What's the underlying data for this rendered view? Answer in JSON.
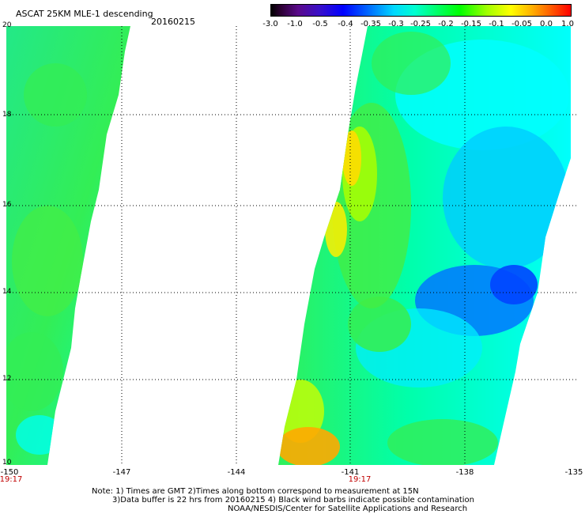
{
  "header": {
    "title": "ASCAT 25KM MLE-1 descending",
    "date": "20160215"
  },
  "colorbar": {
    "labels": [
      "-3.0",
      "-1.0",
      "-0.5",
      "-0.4",
      "-0.35",
      "-0.3",
      "-0.25",
      "-0.2",
      "-0.15",
      "-0.1",
      "-0.05",
      "0.0",
      "1.0"
    ]
  },
  "map": {
    "lat_labels": [
      "20",
      "18",
      "16",
      "14",
      "12",
      "10"
    ],
    "lon_labels": [
      "-150",
      "-147",
      "-144",
      "-141",
      "-138",
      "-135"
    ],
    "time_labels": [
      "19:17",
      "19:17"
    ],
    "colors": {
      "green": "#33ee55",
      "aqua": "#00ffaa",
      "cyan": "#00ffff",
      "light_blue": "#00bbff",
      "blue": "#0055ff",
      "yellow": "#ffee00",
      "orange": "#ff9900"
    }
  },
  "notes": {
    "line1": "Note: 1) Times are GMT 2)Times along bottom correspond to measurement at 15N",
    "line2": "3)Data buffer is 22 hrs from 20160215 4) Black wind barbs indicate possible contamination",
    "line3": "NOAA/NESDIS/Center for Satellite Applications and Research"
  }
}
